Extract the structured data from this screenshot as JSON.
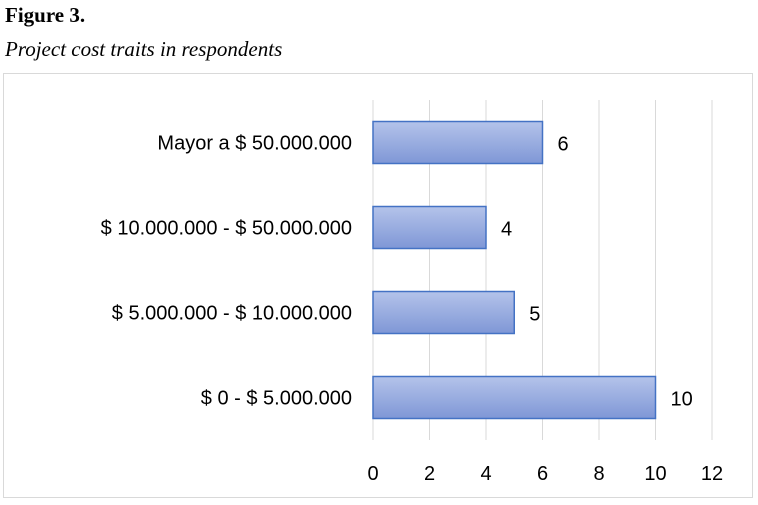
{
  "figure": {
    "number": "Figure 3.",
    "caption": "Project cost traits in respondents"
  },
  "chart_data": {
    "type": "bar",
    "orientation": "horizontal",
    "categories": [
      "Mayor a $ 50.000.000",
      "$ 10.000.000 - $ 50.000.000",
      "$ 5.000.000 - $ 10.000.000",
      "$ 0 - $ 5.000.000"
    ],
    "values": [
      6,
      4,
      5,
      10
    ],
    "data_labels": [
      "6",
      "4",
      "5",
      "10"
    ],
    "xticks": [
      0,
      2,
      4,
      6,
      8,
      10,
      12
    ],
    "xlim": [
      0,
      12
    ],
    "grid": "vertical",
    "bar_color": "#8fa5dc",
    "bar_border_color": "#4472c4",
    "legend": "none"
  }
}
